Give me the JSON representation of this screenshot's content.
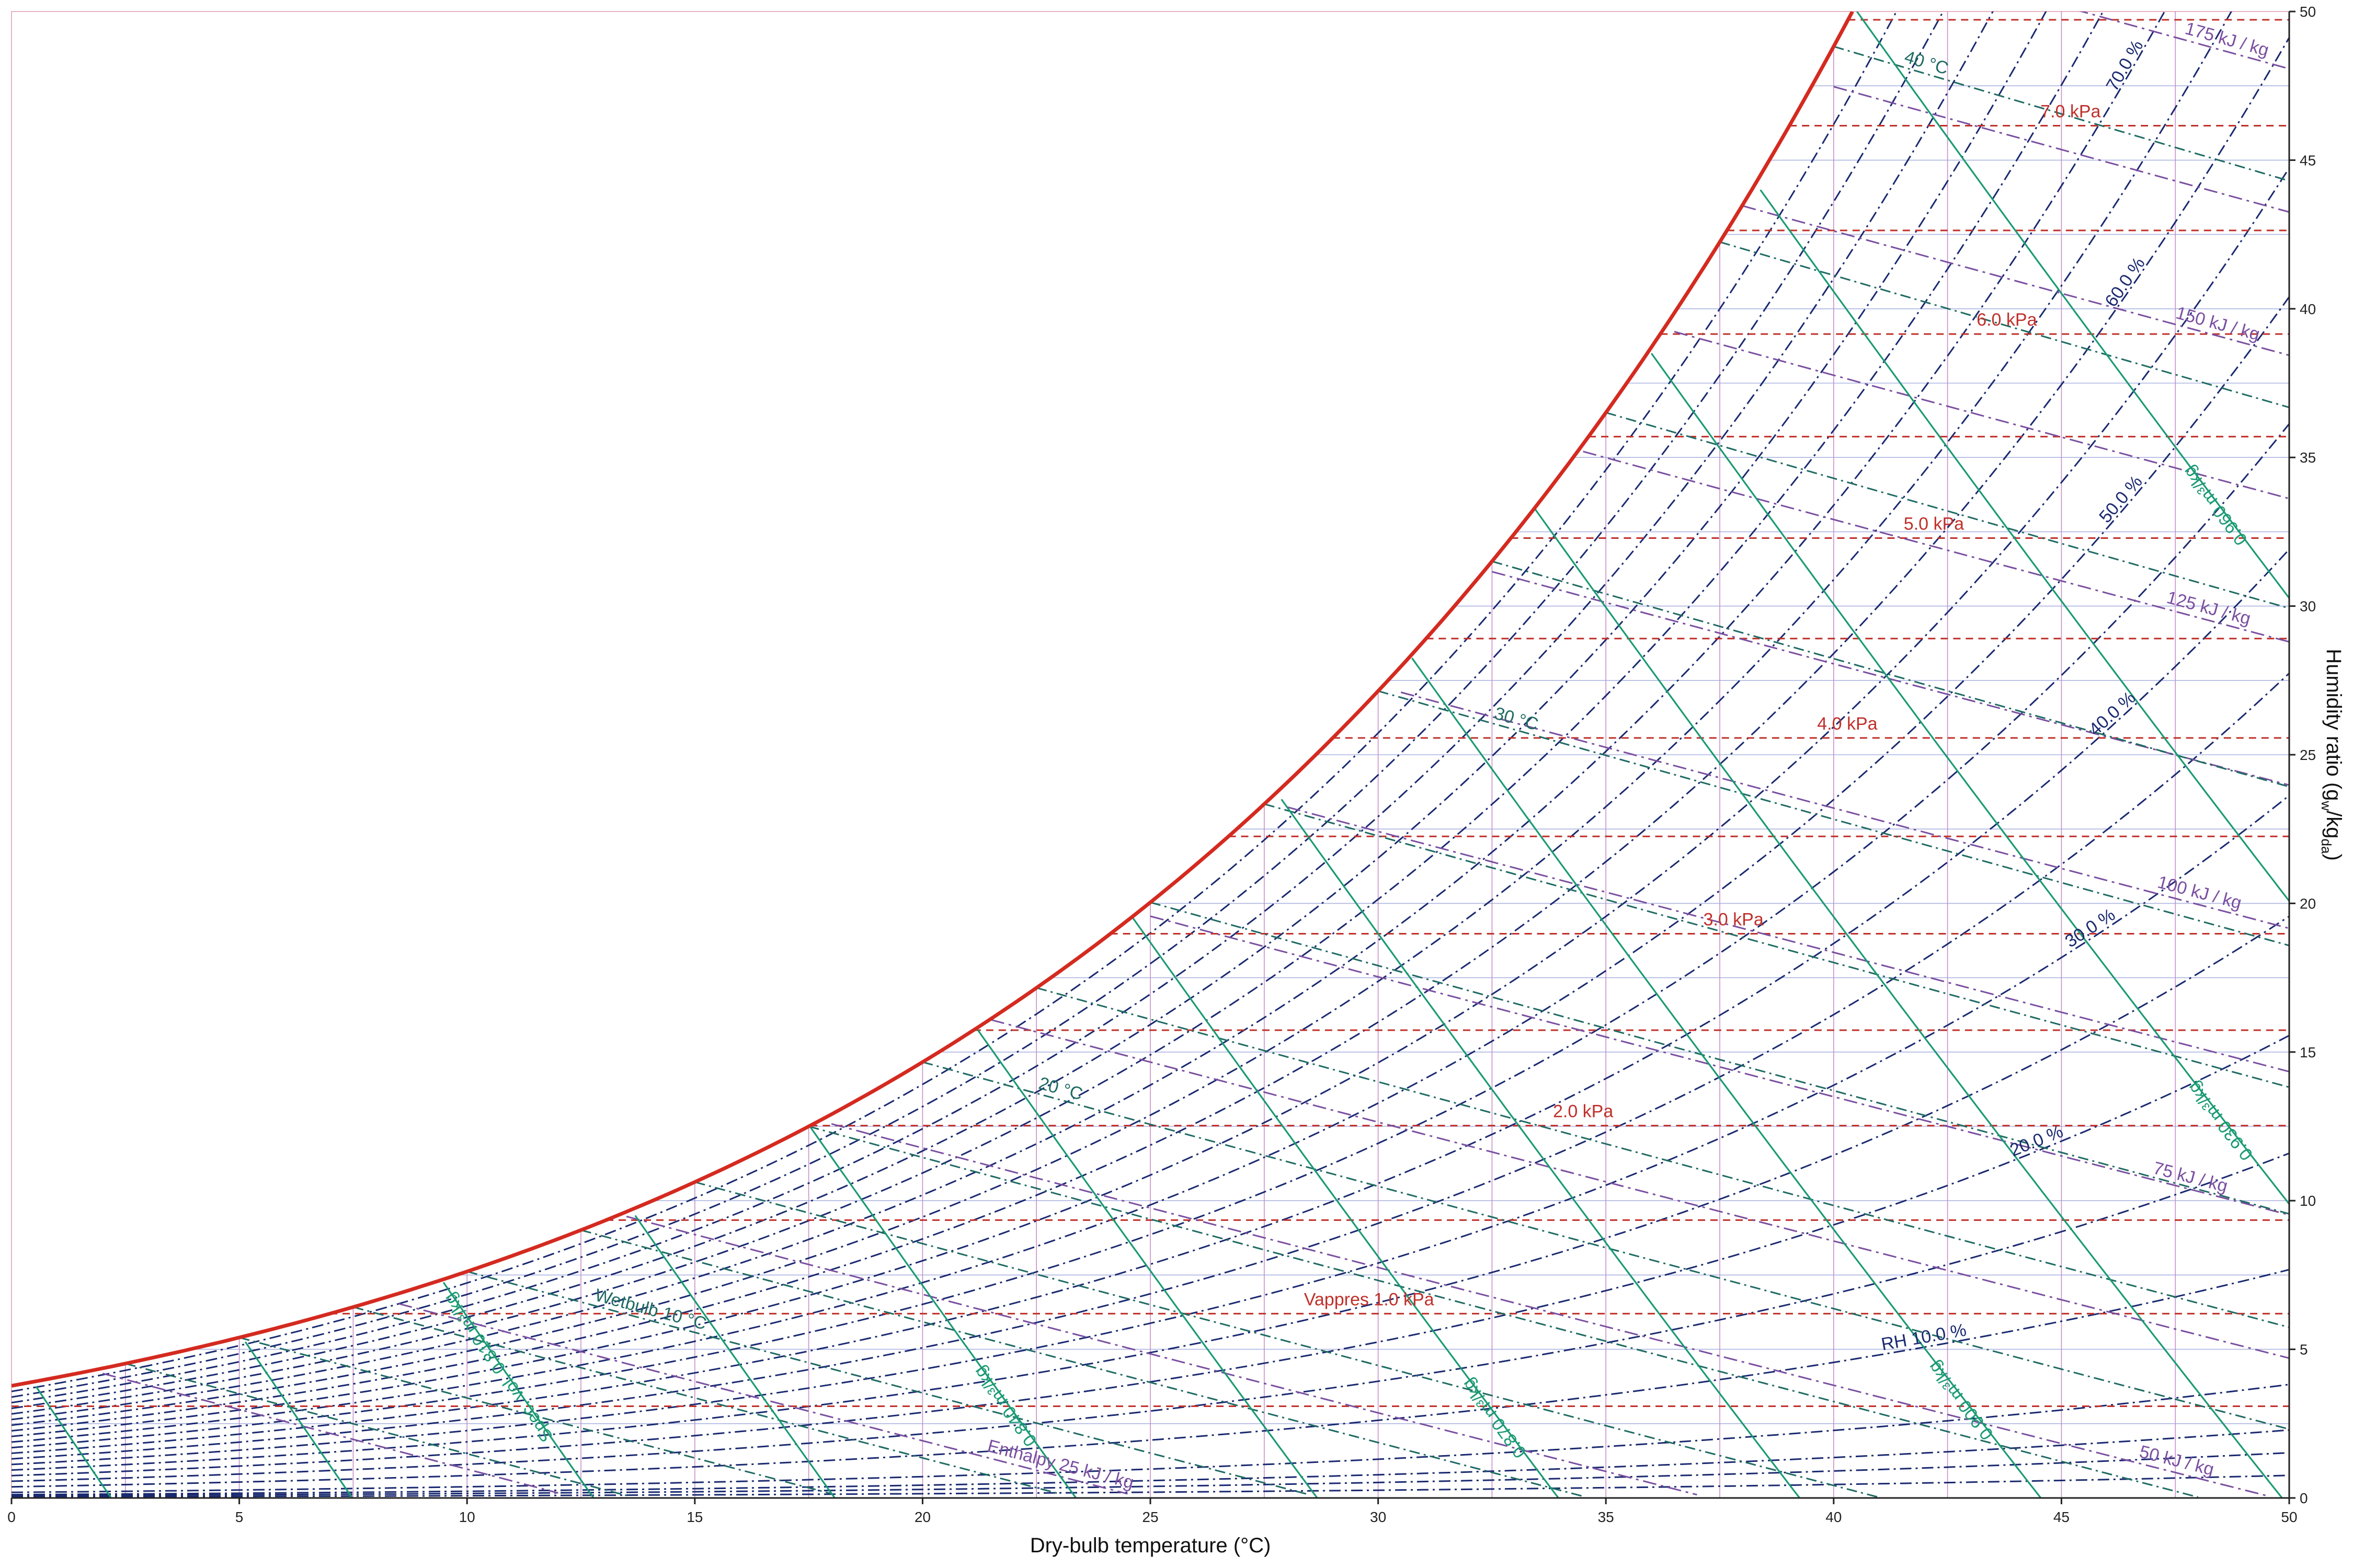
{
  "chart_data": {
    "type": "line",
    "title": "",
    "xlabel": "Dry-bulb temperature (°C)",
    "ylabel": "Humidity ratio (g",
    "ylabel_sub1": "w",
    "ylabel_mid": "/kg",
    "ylabel_sub2": "da",
    "ylabel_end": ")",
    "xlim": [
      0,
      50
    ],
    "ylim": [
      0,
      50
    ],
    "x_ticks": [
      "0",
      "5",
      "10",
      "15",
      "20",
      "25",
      "30",
      "35",
      "40",
      "45",
      "50"
    ],
    "y_ticks": [
      "0",
      "5",
      "10",
      "15",
      "20",
      "25",
      "30",
      "35",
      "40",
      "45",
      "50"
    ],
    "y_axis_side": "right",
    "saturation_curve": {
      "color": "#d42a20",
      "values_x": [
        0,
        5,
        10,
        15,
        20,
        25,
        30,
        35,
        40,
        40.4
      ],
      "values_y": [
        3.79,
        5.44,
        7.66,
        10.7,
        14.8,
        20.1,
        27.3,
        36.8,
        49.2,
        50
      ]
    },
    "relative_humidity": {
      "color": "#1a2a70",
      "levels_percent": [
        10,
        20,
        30,
        40,
        50,
        60,
        70
      ],
      "labels": [
        "RH 10.0 %",
        "20.0 %",
        "30.0 %",
        "40.0 %",
        "50.0 %",
        "60.0 %",
        "70.0 %"
      ]
    },
    "wet_bulb": {
      "color": "#1f6b63",
      "levels_c": [
        10,
        20,
        30,
        40
      ],
      "labels": [
        "Wetbulb 10 °C",
        "20 °C",
        "30 °C",
        "40 °C"
      ]
    },
    "specific_volume": {
      "color": "#1a9a73",
      "levels_m3kg": [
        0.81,
        0.84,
        0.87,
        0.9,
        0.93,
        0.96
      ],
      "labels": [
        "Spec. vol. 0.810 m³/kg",
        "0.840 m³/kg",
        "0.870 m³/kg",
        "0.900 m³/kg",
        "0.930 m³/kg",
        "0.960 m³/kg"
      ]
    },
    "enthalpy": {
      "color": "#7a4fa0",
      "levels_kjkg": [
        25,
        50,
        75,
        100,
        125,
        150,
        175
      ],
      "labels": [
        "Enthalpy 25 kJ / kg",
        "50 kJ / kg",
        "75 kJ / kg",
        "100 kJ / kg",
        "125 kJ / kg",
        "150 kJ / kg",
        "175 kJ / kg"
      ]
    },
    "vapour_pressure": {
      "color": "#c0302a",
      "levels_kpa": [
        1,
        2,
        3,
        4,
        5,
        6,
        7
      ],
      "labels": [
        "Vappres 1.0 kPa",
        "2.0 kPa",
        "3.0 kPa",
        "4.0 kPa",
        "5.0 kPa",
        "6.0 kPa",
        "7.0 kPa"
      ]
    },
    "grid": true,
    "legend": "none"
  }
}
